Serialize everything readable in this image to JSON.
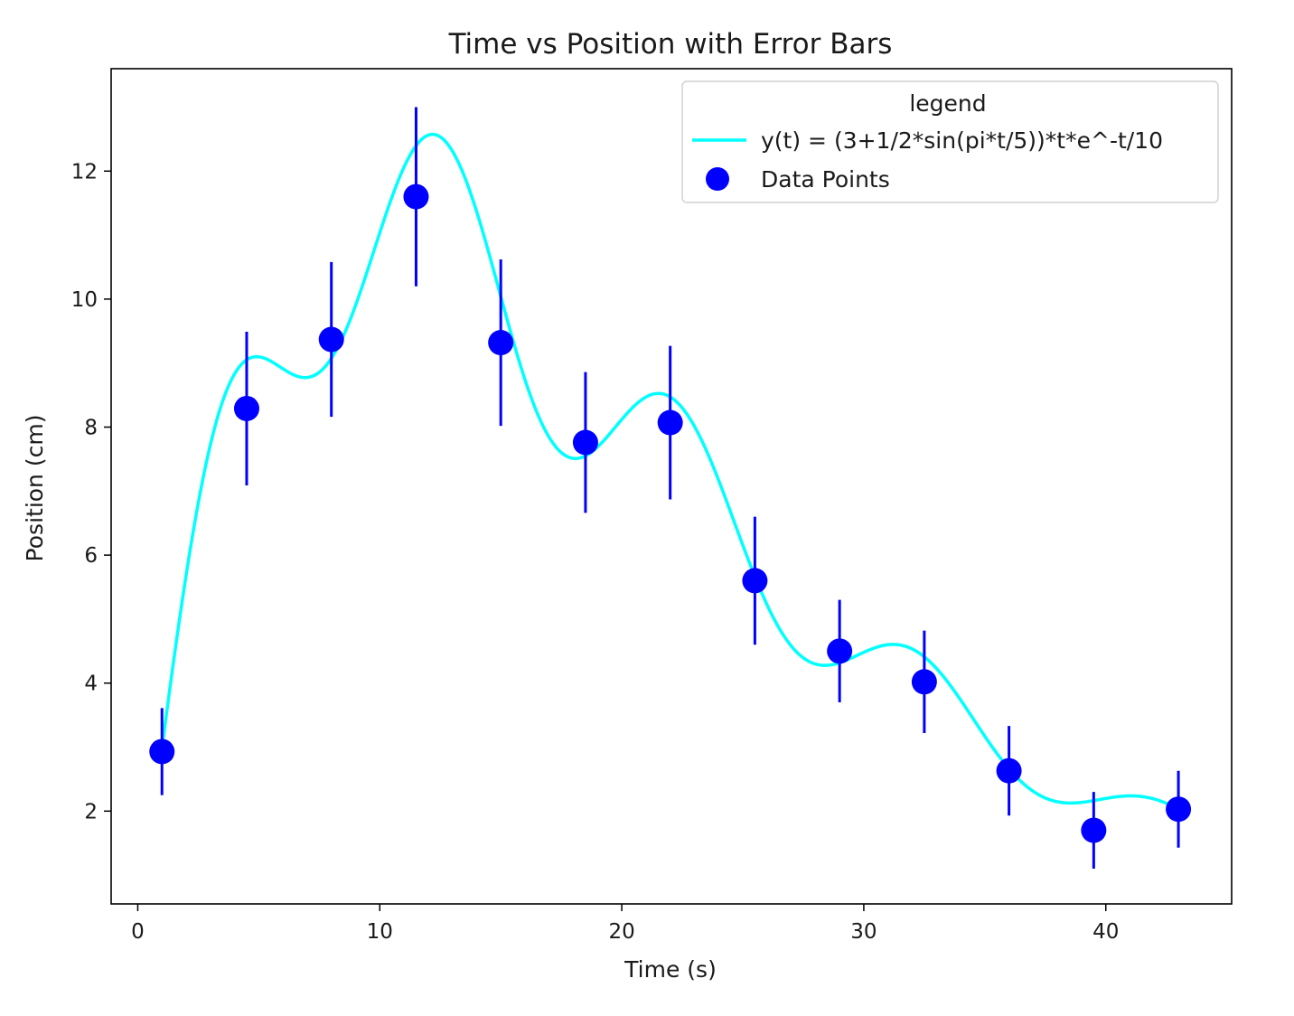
{
  "chart_data": {
    "type": "line",
    "title": "Time vs Position with Error Bars",
    "xlabel": "Time (s)",
    "ylabel": "Position (cm)",
    "xlim": [
      -1.1,
      45.2
    ],
    "ylim": [
      0.55,
      13.6
    ],
    "xticks": [
      0,
      10,
      20,
      30,
      40
    ],
    "yticks": [
      2,
      4,
      6,
      8,
      10,
      12
    ],
    "grid": false,
    "legend": {
      "title": "legend",
      "placement": "top-right",
      "entries": [
        {
          "label": "y(t) = (3+1/2*sin(pi*t/5))*t*e^-t/10",
          "type": "line",
          "color": "#00ffff"
        },
        {
          "label": "Data Points",
          "type": "marker",
          "color": "#0000ff"
        }
      ]
    },
    "series": [
      {
        "name": "y(t) = (3+1/2*sin(pi*t/5))*t*e^-t/10",
        "kind": "function",
        "formula": "(3+0.5*sin(pi*t/5))*t*exp(-t/10)",
        "x_range": [
          1,
          43
        ],
        "color": "#00ffff"
      },
      {
        "name": "Data Points",
        "kind": "scatter_errorbar",
        "color": "#0000ff",
        "x": [
          1,
          4.5,
          8,
          11.5,
          15,
          18.5,
          22,
          25.5,
          29,
          32.5,
          36,
          39.5,
          43
        ],
        "y": [
          2.93,
          8.29,
          9.37,
          11.6,
          9.32,
          7.76,
          8.07,
          5.6,
          4.5,
          4.02,
          2.63,
          1.7,
          2.03
        ],
        "yerr": [
          0.68,
          1.2,
          1.21,
          1.4,
          1.3,
          1.1,
          1.2,
          1.0,
          0.8,
          0.8,
          0.7,
          0.6,
          0.6
        ]
      }
    ]
  }
}
